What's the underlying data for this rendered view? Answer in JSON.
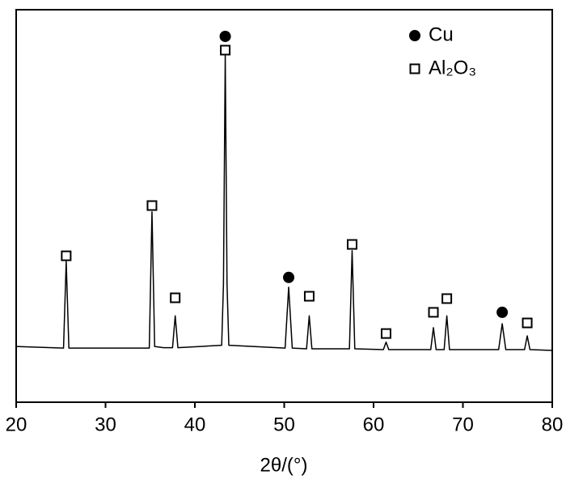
{
  "chart_data": {
    "type": "line",
    "xlabel": "2θ/(°)",
    "xlim": [
      20,
      80
    ],
    "ylim": [
      0,
      100
    ],
    "xticks": [
      20,
      30,
      40,
      50,
      60,
      70,
      80
    ],
    "color": "#000000",
    "x": [
      20,
      25.3,
      25.6,
      25.9,
      34.9,
      35.2,
      35.5,
      36.5,
      37.5,
      37.8,
      38.1,
      43.0,
      43.2,
      43.4,
      43.6,
      43.8,
      50.1,
      50.5,
      50.9,
      52.5,
      52.8,
      53.1,
      57.3,
      57.6,
      57.9,
      61.1,
      61.4,
      61.7,
      66.4,
      66.7,
      67.0,
      67.9,
      68.2,
      68.5,
      74.0,
      74.4,
      74.8,
      76.9,
      77.2,
      77.5,
      80
    ],
    "values": [
      14.2,
      13.8,
      35.9,
      13.8,
      13.8,
      48.5,
      14.2,
      13.9,
      13.9,
      22,
      13.9,
      14.5,
      30,
      88.5,
      30,
      14.5,
      13.8,
      29.3,
      13.8,
      13.6,
      22,
      13.6,
      13.6,
      38.6,
      13.6,
      13.4,
      15.3,
      13.4,
      13.4,
      19,
      13.4,
      13.4,
      22,
      13.4,
      13.4,
      20,
      13.4,
      13.4,
      16.9,
      13.4,
      13.2
    ],
    "markers": [
      {
        "name": "Cu",
        "marker": "circle",
        "color": "#000000",
        "x": [
          43.4,
          50.5,
          74.4
        ],
        "values": [
          93.2,
          31.8,
          22.9
        ]
      },
      {
        "name": "Al₂O₃",
        "marker": "square",
        "color": "#ffffff",
        "x": [
          25.6,
          35.2,
          37.8,
          43.4,
          52.8,
          57.6,
          61.4,
          66.7,
          68.2,
          77.2
        ],
        "values": [
          37.3,
          50.1,
          26.6,
          89.7,
          27,
          40.2,
          17.5,
          22.9,
          26.4,
          20.2
        ]
      }
    ]
  }
}
